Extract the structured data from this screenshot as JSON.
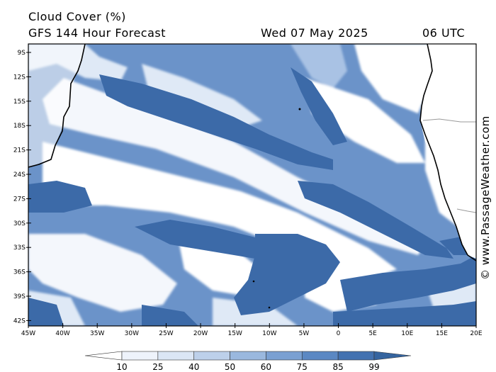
{
  "header": {
    "title": "Cloud Cover (%)",
    "subtitle": "GFS 144 Hour Forecast",
    "date": "Wed 07 May 2025",
    "time": "06 UTC"
  },
  "credit": "© www.PassageWeather.com",
  "lat_labels": [
    "9S",
    "12S",
    "15S",
    "18S",
    "21S",
    "24S",
    "27S",
    "30S",
    "33S",
    "36S",
    "39S",
    "42S"
  ],
  "lon_labels": [
    "45W",
    "40W",
    "35W",
    "30W",
    "25W",
    "20W",
    "15W",
    "10W",
    "5W",
    "0",
    "5E",
    "10E",
    "15E",
    "20E"
  ],
  "colorbar": {
    "labels": [
      "10",
      "25",
      "40",
      "50",
      "60",
      "75",
      "85",
      "99"
    ],
    "colors": [
      "#ffffff",
      "#eef3fb",
      "#dbe6f5",
      "#bdd0ea",
      "#9ab8de",
      "#7aa0d2",
      "#5b88c3",
      "#4372b0",
      "#35649f"
    ]
  },
  "colors": {
    "cloud_dark": "#3c6aa8",
    "cloud_mid": "#6b93c9",
    "cloud_light": "#a9c2e4",
    "cloud_pale": "#dfe9f6",
    "coast": "#000000",
    "border": "#999999"
  }
}
